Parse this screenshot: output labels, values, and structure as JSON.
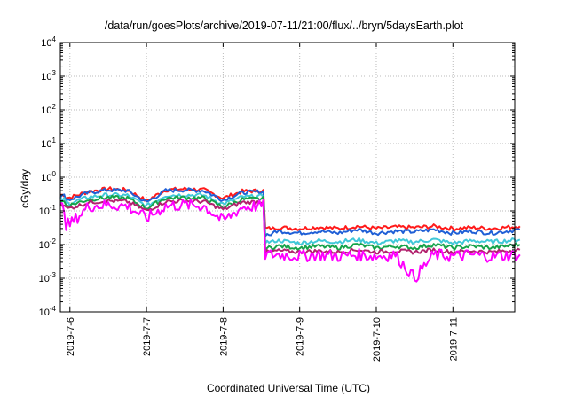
{
  "chart_data": {
    "type": "line",
    "title": "/data/run/goesPlots/archive/2019-07-11/21:00/flux/../bryn/5daysEarth.plot",
    "xlabel": "Coordinated Universal Time (UTC)",
    "ylabel": "cGy/day",
    "y_scale": "log",
    "ylim": [
      0.0001,
      10000
    ],
    "y_ticks": [
      {
        "value": 0.0001,
        "base": "10",
        "exp": "-4"
      },
      {
        "value": 0.001,
        "base": "10",
        "exp": "-3"
      },
      {
        "value": 0.01,
        "base": "10",
        "exp": "-2"
      },
      {
        "value": 0.1,
        "base": "10",
        "exp": "-1"
      },
      {
        "value": 1,
        "base": "10",
        "exp": "0"
      },
      {
        "value": 10,
        "base": "10",
        "exp": "1"
      },
      {
        "value": 100,
        "base": "10",
        "exp": "2"
      },
      {
        "value": 1000,
        "base": "10",
        "exp": "3"
      },
      {
        "value": 10000,
        "base": "10",
        "exp": "4"
      }
    ],
    "xlim": [
      "2019-07-05 21:00",
      "2019-07-11 21:00"
    ],
    "x_ticks": [
      "2019-7-6",
      "2019-7-7",
      "2019-7-8",
      "2019-7-9",
      "2019-7-10",
      "2019-7-11"
    ],
    "grid": true,
    "x_unit": "days since 2019-07-06 00:00 UTC",
    "series": [
      {
        "color": "#ff1a1a",
        "x": [
          -0.125,
          0.0,
          0.25,
          0.5,
          0.75,
          1.0,
          1.25,
          1.5,
          1.75,
          2.0,
          2.25,
          2.5,
          2.6,
          2.75,
          3.0,
          3.25,
          3.5,
          3.75,
          4.0,
          4.25,
          4.5,
          4.75,
          5.0,
          5.25,
          5.5,
          5.875
        ],
        "y": [
          0.3,
          0.25,
          0.38,
          0.45,
          0.42,
          0.2,
          0.42,
          0.45,
          0.42,
          0.24,
          0.38,
          0.4,
          0.03,
          0.032,
          0.03,
          0.033,
          0.03,
          0.035,
          0.03,
          0.033,
          0.032,
          0.035,
          0.03,
          0.032,
          0.03,
          0.035
        ]
      },
      {
        "color": "#1f5fd6",
        "x": [
          -0.125,
          0.0,
          0.25,
          0.5,
          0.75,
          1.0,
          1.25,
          1.5,
          1.75,
          2.0,
          2.25,
          2.5,
          2.6,
          2.75,
          3.0,
          3.25,
          3.5,
          3.75,
          4.0,
          4.25,
          4.5,
          4.75,
          5.0,
          5.25,
          5.5,
          5.875
        ],
        "y": [
          0.28,
          0.22,
          0.35,
          0.42,
          0.4,
          0.18,
          0.4,
          0.42,
          0.4,
          0.21,
          0.35,
          0.37,
          0.02,
          0.025,
          0.022,
          0.025,
          0.022,
          0.028,
          0.022,
          0.025,
          0.024,
          0.028,
          0.022,
          0.025,
          0.022,
          0.028
        ]
      },
      {
        "color": "#40c8d8",
        "x": [
          -0.125,
          0.0,
          0.25,
          0.5,
          0.75,
          1.0,
          1.25,
          1.5,
          1.75,
          2.0,
          2.25,
          2.5,
          2.6,
          2.75,
          3.0,
          3.25,
          3.5,
          3.75,
          4.0,
          4.25,
          4.5,
          4.75,
          5.0,
          5.25,
          5.5,
          5.875
        ],
        "y": [
          0.22,
          0.17,
          0.26,
          0.3,
          0.29,
          0.14,
          0.29,
          0.3,
          0.29,
          0.16,
          0.26,
          0.27,
          0.012,
          0.013,
          0.011,
          0.013,
          0.012,
          0.014,
          0.011,
          0.013,
          0.012,
          0.014,
          0.011,
          0.013,
          0.012,
          0.014
        ]
      },
      {
        "color": "#16a34a",
        "x": [
          -0.125,
          0.0,
          0.25,
          0.5,
          0.75,
          1.0,
          1.25,
          1.5,
          1.75,
          2.0,
          2.25,
          2.5,
          2.6,
          2.75,
          3.0,
          3.25,
          3.5,
          3.75,
          4.0,
          4.25,
          4.5,
          4.75,
          5.0,
          5.25,
          5.5,
          5.875
        ],
        "y": [
          0.19,
          0.15,
          0.22,
          0.25,
          0.24,
          0.12,
          0.24,
          0.25,
          0.24,
          0.13,
          0.22,
          0.23,
          0.008,
          0.009,
          0.008,
          0.009,
          0.008,
          0.01,
          0.008,
          0.009,
          0.008,
          0.01,
          0.008,
          0.009,
          0.008,
          0.01
        ]
      },
      {
        "color": "#b2226e",
        "x": [
          -0.125,
          0.0,
          0.25,
          0.5,
          0.75,
          1.0,
          1.25,
          1.5,
          1.75,
          2.0,
          2.25,
          2.5,
          2.6,
          2.75,
          3.0,
          3.25,
          3.5,
          3.75,
          4.0,
          4.25,
          4.5,
          4.75,
          5.0,
          5.25,
          5.5,
          5.875
        ],
        "y": [
          0.16,
          0.12,
          0.18,
          0.2,
          0.19,
          0.1,
          0.19,
          0.2,
          0.19,
          0.11,
          0.18,
          0.19,
          0.006,
          0.0065,
          0.006,
          0.0065,
          0.006,
          0.007,
          0.006,
          0.0065,
          0.006,
          0.007,
          0.006,
          0.0065,
          0.006,
          0.007
        ]
      },
      {
        "color": "#ff00ff",
        "x": [
          -0.125,
          0.0,
          0.25,
          0.5,
          0.75,
          1.0,
          1.25,
          1.5,
          1.75,
          2.0,
          2.25,
          2.5,
          2.6,
          2.75,
          3.0,
          3.25,
          3.5,
          3.75,
          4.0,
          4.25,
          4.5,
          4.75,
          5.0,
          5.25,
          5.5,
          5.875
        ],
        "y": [
          0.13,
          0.04,
          0.14,
          0.15,
          0.14,
          0.06,
          0.14,
          0.15,
          0.14,
          0.05,
          0.13,
          0.14,
          0.005,
          0.005,
          0.0045,
          0.005,
          0.0045,
          0.005,
          0.0045,
          0.005,
          0.001,
          0.005,
          0.0045,
          0.005,
          0.0045,
          0.005
        ]
      }
    ]
  }
}
